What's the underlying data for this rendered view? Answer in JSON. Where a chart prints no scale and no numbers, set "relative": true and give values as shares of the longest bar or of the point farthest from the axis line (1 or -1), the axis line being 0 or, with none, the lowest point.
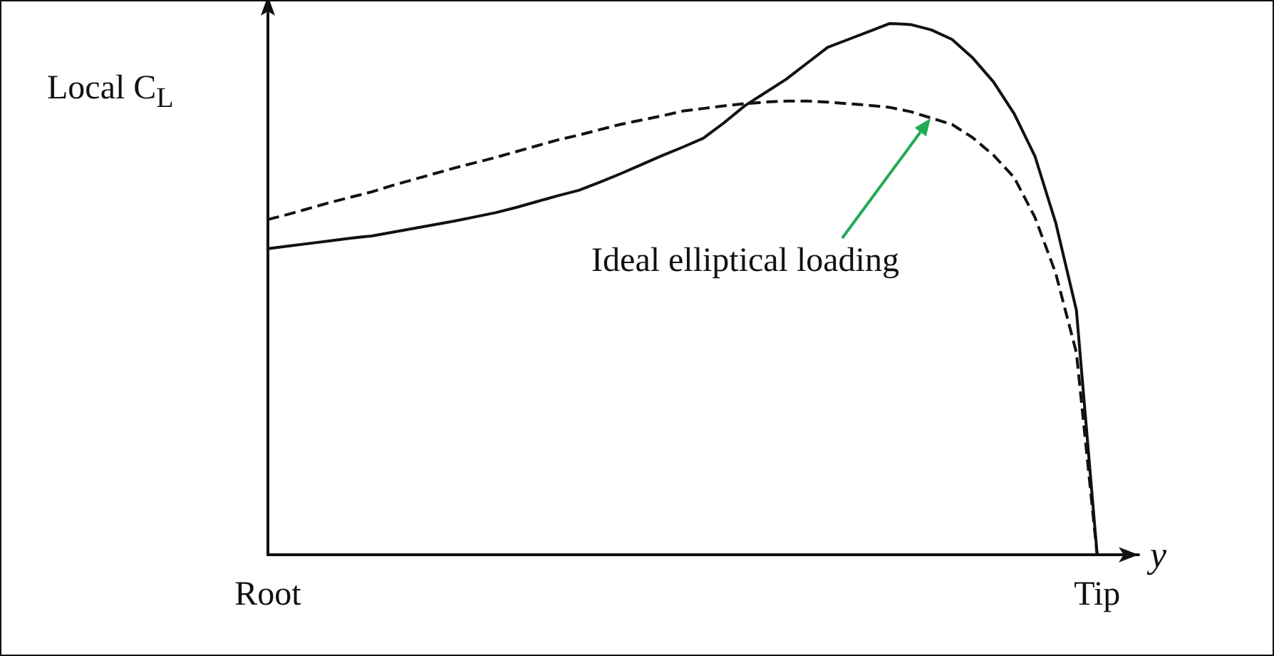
{
  "chart_data": {
    "type": "line",
    "relative": true,
    "ylabel": "Local C$_{L}$",
    "xlabel": "y",
    "marker": "none",
    "categories": [
      "Root",
      null,
      null,
      null,
      null,
      null,
      null,
      null,
      null,
      null,
      null,
      null,
      null,
      null,
      null,
      null,
      null,
      null,
      null,
      null,
      null,
      null,
      null,
      null,
      null,
      null,
      null,
      null,
      null,
      null,
      null,
      null,
      null,
      null,
      null,
      null,
      null,
      null,
      null,
      null,
      "Tip",
      null,
      null
    ],
    "series": [
      {
        "color": "#111111",
        "line_style": "solid",
        "values": [
          0.576,
          0.581,
          0.586,
          0.591,
          0.596,
          0.6,
          0.607,
          0.614,
          0.621,
          0.628,
          0.636,
          0.644,
          0.654,
          0.665,
          0.676,
          0.686,
          0.701,
          0.717,
          0.734,
          0.751,
          0.767,
          0.784,
          0.813,
          0.845,
          0.87,
          0.895,
          0.925,
          0.955,
          0.97,
          0.985,
          1,
          0.998,
          0.988,
          0.97,
          0.935,
          0.89,
          0.83,
          0.75,
          0.625,
          0.46,
          0,
          null,
          null
        ]
      },
      {
        "color": "#111111",
        "line_style": "dashed",
        "values": [
          0.631,
          0.641,
          0.652,
          0.663,
          0.673,
          0.683,
          0.695,
          0.706,
          0.717,
          0.728,
          0.738,
          0.748,
          0.759,
          0.77,
          0.781,
          0.79,
          0.8,
          0.81,
          0.818,
          0.826,
          0.835,
          0.84,
          0.845,
          0.849,
          0.852,
          0.854,
          0.854,
          0.852,
          0.849,
          0.846,
          0.842,
          0.834,
          0.822,
          0.81,
          0.785,
          0.752,
          0.71,
          0.635,
          0.53,
          0.38,
          0,
          null,
          null
        ]
      }
    ],
    "annotations": [
      "Ideal elliptical loading"
    ]
  }
}
